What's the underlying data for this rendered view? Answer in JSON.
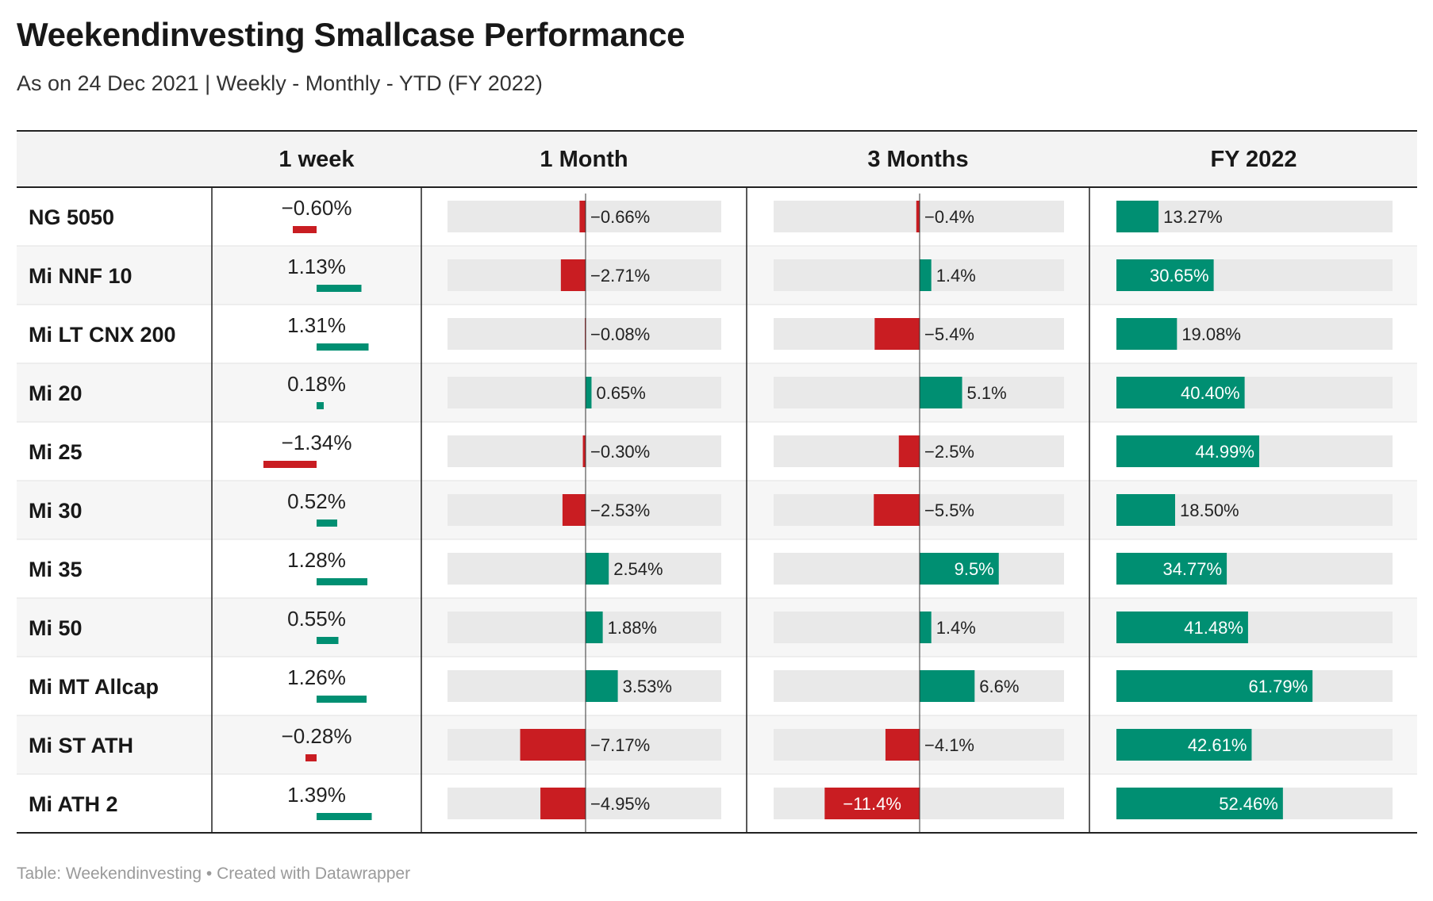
{
  "title": "Weekendinvesting Smallcase Performance",
  "subtitle": "As on 24 Dec 2021 | Weekly - Monthly - YTD (FY 2022)",
  "footer": "Table: Weekendinvesting • Created with Datawrapper",
  "colors": {
    "positive": "#008f72",
    "negative": "#c91d22",
    "bar_track": "#e9e9e9",
    "header_bg": "#f3f3f3",
    "stripe_bg": "#f6f6f6"
  },
  "chart_data": {
    "type": "table",
    "columns": [
      "",
      "1 week",
      "1 Month",
      "3 Months",
      "FY 2022"
    ],
    "rows": [
      {
        "name": "NG 5050",
        "week": -0.6,
        "week_label": "−0.60%",
        "month": -0.66,
        "month_label": "−0.66%",
        "three_months": -0.4,
        "three_months_label": "−0.4%",
        "fy2022": 13.27,
        "fy2022_label": "13.27%"
      },
      {
        "name": "Mi NNF 10",
        "week": 1.13,
        "week_label": "1.13%",
        "month": -2.71,
        "month_label": "−2.71%",
        "three_months": 1.4,
        "three_months_label": "1.4%",
        "fy2022": 30.65,
        "fy2022_label": "30.65%"
      },
      {
        "name": "Mi LT CNX 200",
        "week": 1.31,
        "week_label": "1.31%",
        "month": -0.08,
        "month_label": "−0.08%",
        "three_months": -5.4,
        "three_months_label": "−5.4%",
        "fy2022": 19.08,
        "fy2022_label": "19.08%"
      },
      {
        "name": "Mi 20",
        "week": 0.18,
        "week_label": "0.18%",
        "month": 0.65,
        "month_label": "0.65%",
        "three_months": 5.1,
        "three_months_label": "5.1%",
        "fy2022": 40.4,
        "fy2022_label": "40.40%"
      },
      {
        "name": "Mi 25",
        "week": -1.34,
        "week_label": "−1.34%",
        "month": -0.3,
        "month_label": "−0.30%",
        "three_months": -2.5,
        "three_months_label": "−2.5%",
        "fy2022": 44.99,
        "fy2022_label": "44.99%"
      },
      {
        "name": "Mi 30",
        "week": 0.52,
        "week_label": "0.52%",
        "month": -2.53,
        "month_label": "−2.53%",
        "three_months": -5.5,
        "three_months_label": "−5.5%",
        "fy2022": 18.5,
        "fy2022_label": "18.50%"
      },
      {
        "name": "Mi 35",
        "week": 1.28,
        "week_label": "1.28%",
        "month": 2.54,
        "month_label": "2.54%",
        "three_months": 9.5,
        "three_months_label": "9.5%",
        "fy2022": 34.77,
        "fy2022_label": "34.77%"
      },
      {
        "name": "Mi 50",
        "week": 0.55,
        "week_label": "0.55%",
        "month": 1.88,
        "month_label": "1.88%",
        "three_months": 1.4,
        "three_months_label": "1.4%",
        "fy2022": 41.48,
        "fy2022_label": "41.48%"
      },
      {
        "name": "Mi MT Allcap",
        "week": 1.26,
        "week_label": "1.26%",
        "month": 3.53,
        "month_label": "3.53%",
        "three_months": 6.6,
        "three_months_label": "6.6%",
        "fy2022": 61.79,
        "fy2022_label": "61.79%"
      },
      {
        "name": "Mi ST ATH",
        "week": -0.28,
        "week_label": "−0.28%",
        "month": -7.17,
        "month_label": "−7.17%",
        "three_months": -4.1,
        "three_months_label": "−4.1%",
        "fy2022": 42.61,
        "fy2022_label": "42.61%"
      },
      {
        "name": "Mi ATH 2",
        "week": 1.39,
        "week_label": "1.39%",
        "month": -4.95,
        "month_label": "−4.95%",
        "three_months": -11.4,
        "three_months_label": "−11.4%",
        "fy2022": 52.46,
        "fy2022_label": "52.46%"
      }
    ],
    "ranges": {
      "week": [
        -1.34,
        1.39
      ],
      "month": [
        -7.17,
        7.5
      ],
      "three_months": [
        -11.4,
        9.5
      ],
      "fy2022": [
        0,
        87
      ]
    }
  }
}
